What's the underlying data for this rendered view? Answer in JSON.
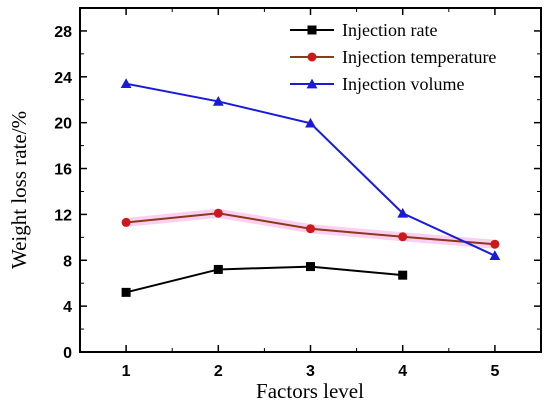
{
  "chart_data": {
    "type": "line",
    "title": "",
    "xlabel": "Factors level",
    "ylabel": "Weight loss rate/%",
    "xlim": [
      0.5,
      5.5
    ],
    "ylim": [
      0,
      30
    ],
    "xticks": [
      1,
      2,
      3,
      4,
      5
    ],
    "yticks": [
      0,
      4,
      8,
      12,
      16,
      20,
      24,
      28
    ],
    "grid": false,
    "legend": "top-right",
    "series": [
      {
        "name": "Injection rate",
        "color": "#000000",
        "marker": "square",
        "x": [
          1,
          2,
          3,
          4
        ],
        "y": [
          5.2,
          7.2,
          7.45,
          6.7
        ]
      },
      {
        "name": "Injection temperature",
        "color": "#cc1a1a",
        "line_color": "#8b3a1a",
        "highlight_color": "#f7a8e8",
        "marker": "circle",
        "x": [
          1,
          2,
          3,
          4,
          5
        ],
        "y": [
          11.3,
          12.1,
          10.75,
          10.05,
          9.4
        ]
      },
      {
        "name": "Injection volume",
        "color": "#1a1ad9",
        "marker": "triangle",
        "x": [
          1,
          2,
          3,
          4,
          5
        ],
        "y": [
          23.4,
          21.85,
          19.95,
          12.1,
          8.4
        ]
      }
    ]
  }
}
